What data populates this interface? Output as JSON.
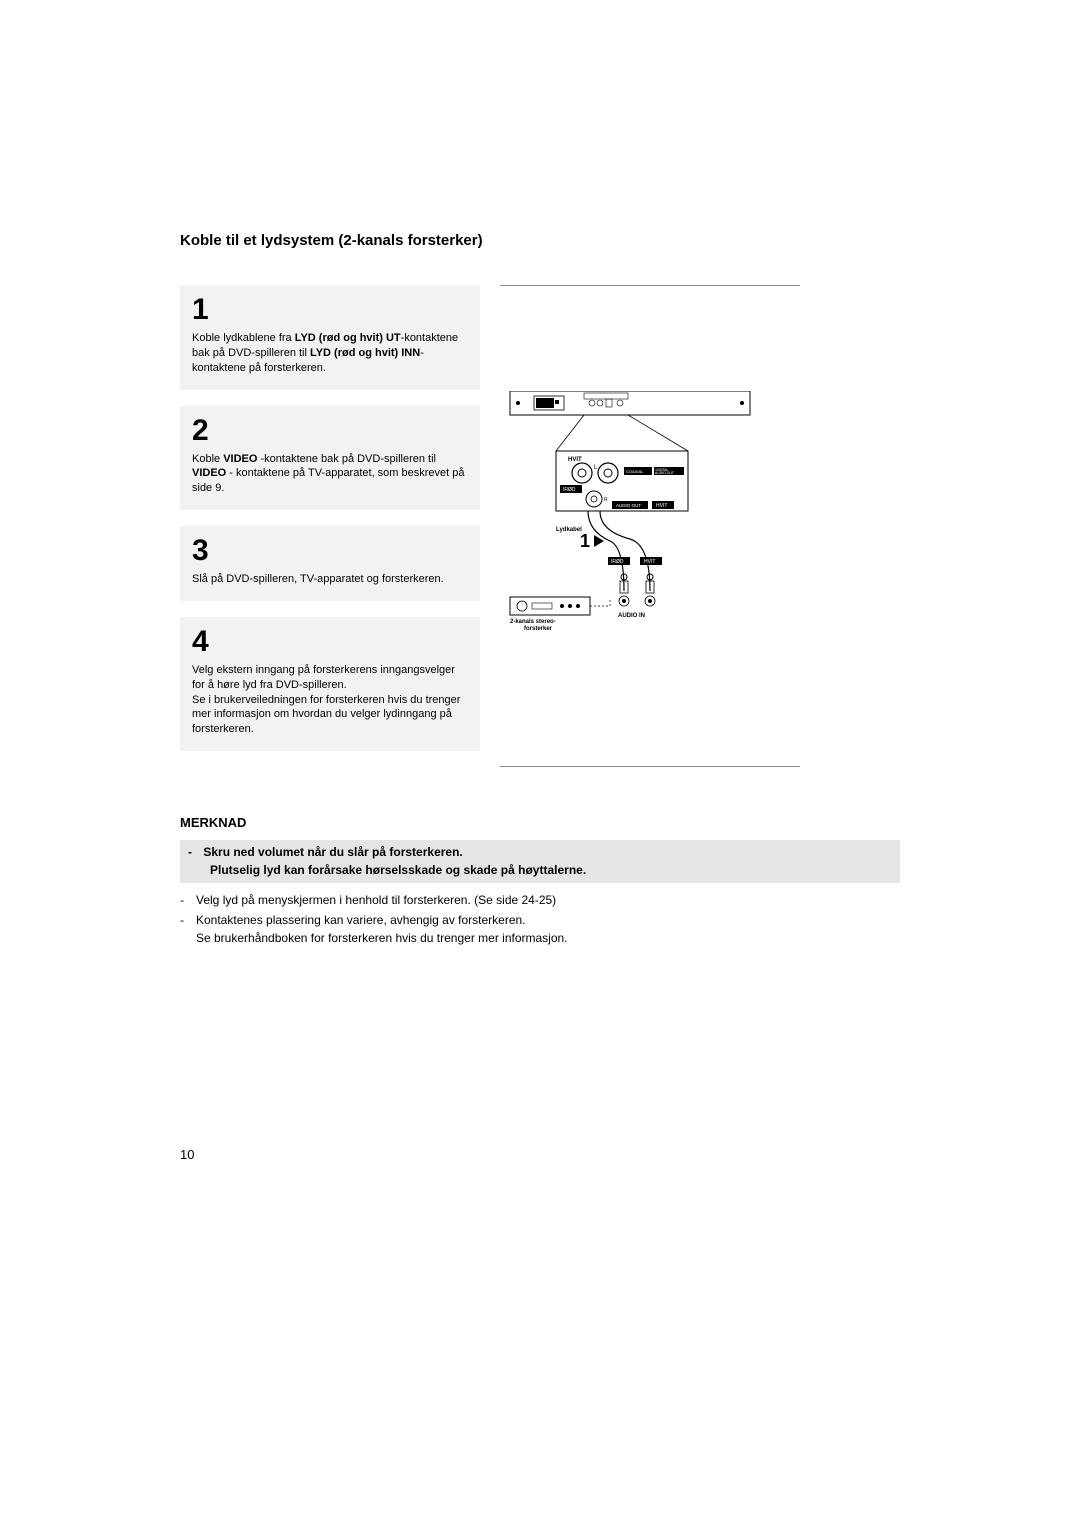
{
  "title": "Koble til et lydsystem (2-kanals forsterker)",
  "steps": [
    {
      "num": "1",
      "html": "Koble lydkablene fra <b>LYD (rød og hvit) UT</b>-kontaktene bak på DVD-spilleren til <b>LYD (rød og hvit) INN</b>-kontaktene på forsterkeren."
    },
    {
      "num": "2",
      "html": "Koble <b>VIDEO</b> -kontaktene bak på DVD-spilleren til <b>VIDEO</b> - kontaktene på TV-apparatet, som beskrevet på side 9."
    },
    {
      "num": "3",
      "html": "Slå på DVD-spilleren, TV-apparatet og forsterkeren."
    },
    {
      "num": "4",
      "html": "Velg ekstern inngang på forsterkerens inngangsvelger for å høre lyd fra DVD-spilleren.<br>Se i brukerveiledningen for forsterkeren hvis du trenger mer informasjon om hvordan du velger lydinngang på forsterkeren."
    }
  ],
  "merknad": {
    "title": "MERKNAD",
    "highlight_line1": "Skru ned volumet når du slår på forsterkeren.",
    "highlight_line2": "Plutselig lyd kan forårsake hørselsskade og skade på høyttalerne.",
    "items": [
      "Velg lyd på menyskjermen i henhold til forsterkeren. (Se side 24-25)",
      "Kontaktenes plassering kan variere, avhengig av forsterkeren.\nSe brukerhåndboken for forsterkeren hvis du trenger mer informasjon."
    ]
  },
  "diagram": {
    "labels": {
      "hvit": "HVIT",
      "irod": "IRØD",
      "coaxial": "COAXIAL",
      "digital_audio_out": "DIGITAL AUDIO OUT",
      "audio_out": "AUDIO OUT",
      "lydkabel": "Lydkabel",
      "audio_in": "AUDIO IN",
      "amp": "2-kanals stereo-\nforsterker",
      "step1": "1"
    },
    "colors": {
      "line": "#000000",
      "fill_dark": "#000000",
      "fill_gray": "#cccccc",
      "bg": "#ffffff"
    }
  },
  "page_number": "10",
  "style": {
    "bg": "#ffffff",
    "text": "#000000",
    "step_bg": "#f2f2f2",
    "merknad_bar_bg": "#e5e5e5",
    "title_size_pt": 15,
    "body_size_pt": 11,
    "stepnum_size_pt": 30
  }
}
